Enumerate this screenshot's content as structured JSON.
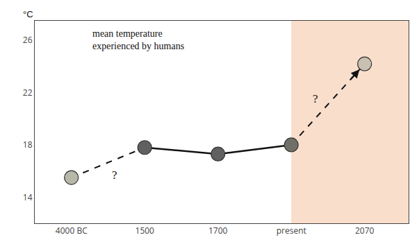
{
  "chart_data": {
    "type": "line",
    "categories": [
      "4000 BC",
      "1500",
      "1700",
      "present",
      "2070"
    ],
    "values": [
      15.5,
      17.8,
      17.3,
      18.0,
      24.2
    ],
    "color": "#111111",
    "colors": [
      "#b8b8aa",
      "#606060",
      "#606060",
      "#707068",
      "#c8c0b0"
    ],
    "marker": "circle",
    "ylabel": "°C",
    "ylim": [
      12,
      27.5
    ],
    "yticks": [
      14,
      18,
      22,
      26
    ],
    "annotations": [
      "mean temperature\nexperienced by humans",
      "?",
      "?"
    ],
    "grid": false
  }
}
